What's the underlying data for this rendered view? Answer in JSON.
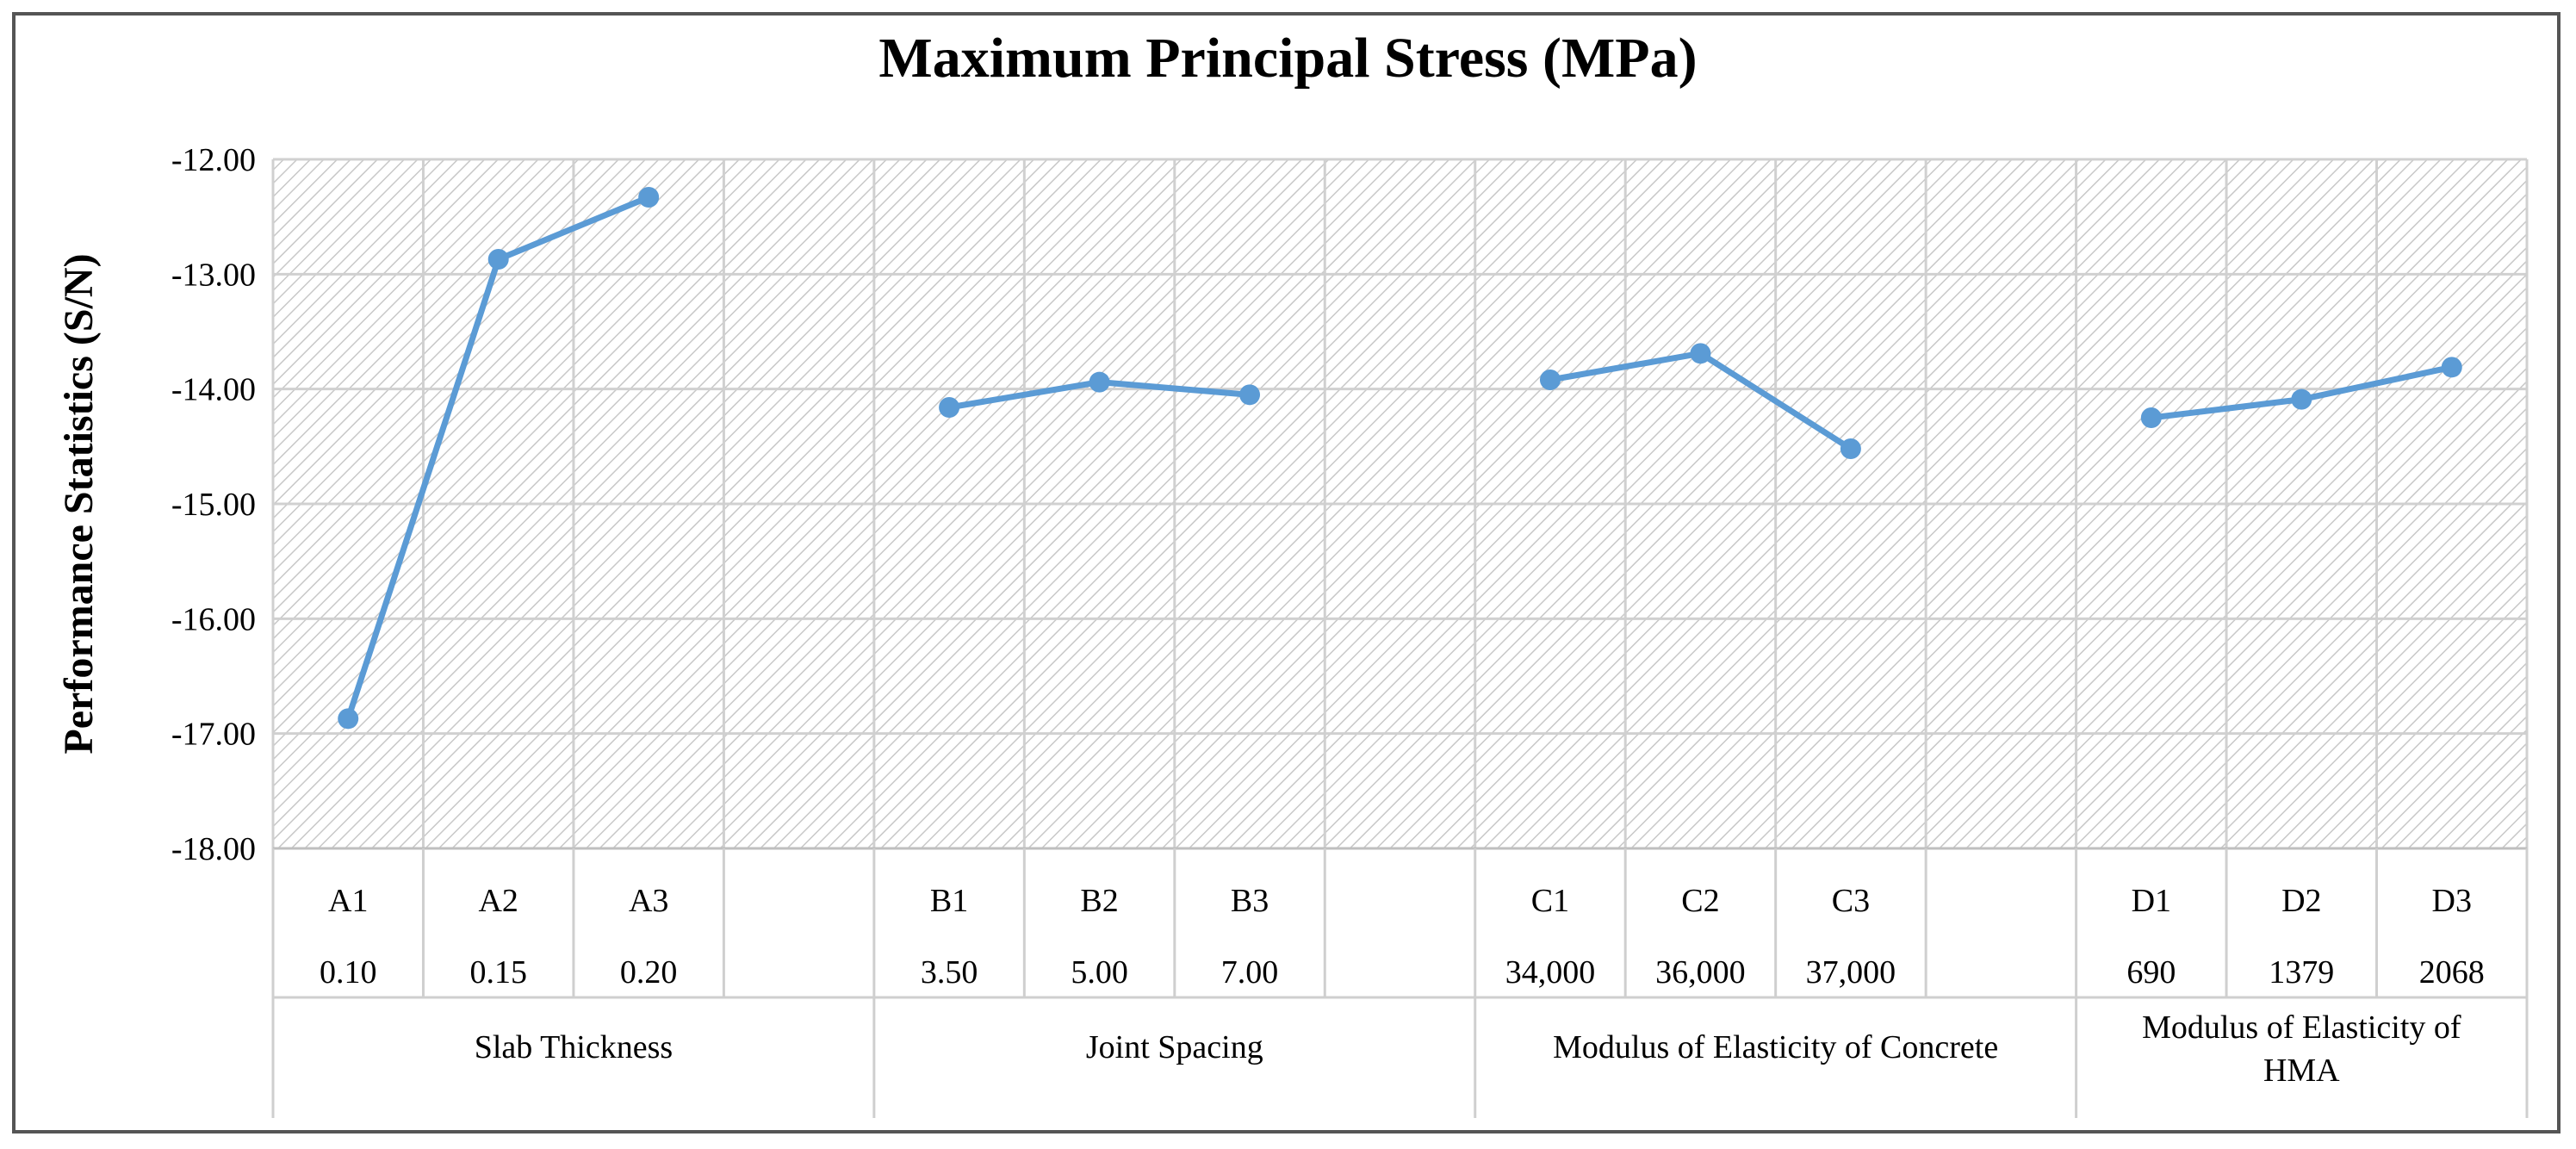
{
  "chart_data": {
    "type": "line",
    "title": "Maximum Principal Stress (MPa)",
    "ylabel": "Performance Statistics (S/N)",
    "xlabel": "",
    "ylim": [
      -18,
      -12
    ],
    "yticks": [
      -12,
      -13,
      -14,
      -15,
      -16,
      -17,
      -18
    ],
    "ytick_labels": [
      "-12.00",
      "-13.00",
      "-14.00",
      "-15.00",
      "-16.00",
      "-17.00",
      "-18.00"
    ],
    "grid": true,
    "line_color": "#5B9BD5",
    "groups": [
      {
        "name": "Slab Thickness",
        "levels": [
          "A1",
          "A2",
          "A3"
        ],
        "level_values": [
          "0.10",
          "0.15",
          "0.20"
        ],
        "values": [
          -16.87,
          -12.87,
          -12.33
        ]
      },
      {
        "name": "Joint Spacing",
        "levels": [
          "B1",
          "B2",
          "B3"
        ],
        "level_values": [
          "3.50",
          "5.00",
          "7.00"
        ],
        "values": [
          -14.16,
          -13.94,
          -14.05
        ]
      },
      {
        "name": "Modulus of Elasticity of Concrete",
        "levels": [
          "C1",
          "C2",
          "C3"
        ],
        "level_values": [
          "34,000",
          "36,000",
          "37,000"
        ],
        "values": [
          -13.92,
          -13.69,
          -14.52
        ]
      },
      {
        "name": "Modulus of Elasticity of HMA",
        "name_lines": [
          "Modulus of Elasticity of",
          "HMA"
        ],
        "levels": [
          "D1",
          "D2",
          "D3"
        ],
        "level_values": [
          "690",
          "1379",
          "2068"
        ],
        "values": [
          -14.25,
          -14.09,
          -13.81
        ]
      }
    ]
  }
}
